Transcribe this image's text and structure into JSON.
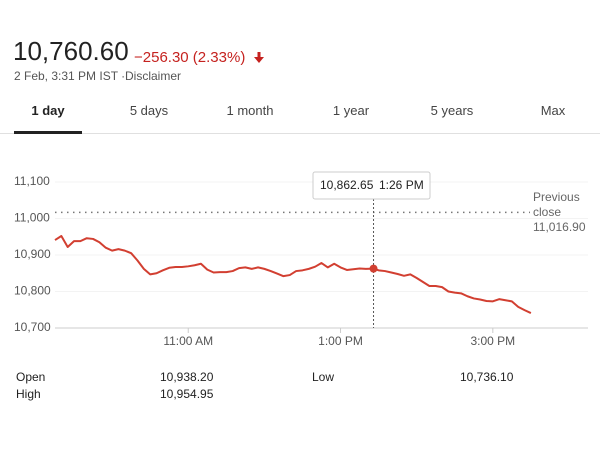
{
  "header": {
    "price": "10,760.60",
    "change": "−256.30 (2.33%)",
    "date": "2 Feb, 3:31 PM IST ·",
    "disclaimer": "Disclaimer"
  },
  "tabs": [
    "1 day",
    "5 days",
    "1 month",
    "1 year",
    "5 years",
    "Max"
  ],
  "stats": [
    {
      "label": "Open",
      "value": "10,938.20"
    },
    {
      "label": "High",
      "value": "10,954.95"
    },
    {
      "label": "Low",
      "value": "10,736.10"
    }
  ],
  "chart_data": {
    "type": "line",
    "x": [
      555,
      560,
      565,
      570,
      575,
      580,
      585,
      590,
      595,
      600,
      605,
      610,
      615,
      620,
      625,
      630,
      635,
      640,
      645,
      650,
      655,
      660,
      665,
      670,
      675,
      680,
      685,
      690,
      695,
      700,
      705,
      710,
      715,
      720,
      725,
      730,
      735,
      740,
      745,
      750,
      755,
      760,
      765,
      770,
      775,
      780,
      785,
      790,
      795,
      800,
      806,
      810,
      815,
      820,
      825,
      830,
      835,
      840,
      845,
      850,
      855,
      860,
      865,
      870,
      875,
      880,
      885,
      890,
      895,
      900,
      905,
      910,
      915,
      920,
      925,
      930
    ],
    "series": [
      {
        "name": null,
        "color": "#d23f31",
        "values": [
          10941,
          10952,
          10922,
          10938,
          10938,
          10946,
          10944,
          10935,
          10920,
          10912,
          10916,
          10912,
          10905,
          10885,
          10862,
          10847,
          10850,
          10858,
          10865,
          10867,
          10867,
          10869,
          10872,
          10876,
          10860,
          10852,
          10853,
          10853,
          10856,
          10864,
          10866,
          10862,
          10866,
          10862,
          10856,
          10849,
          10842,
          10845,
          10856,
          10858,
          10862,
          10868,
          10878,
          10866,
          10876,
          10866,
          10859,
          10861,
          10863,
          10862,
          10862.65,
          10858,
          10856,
          10852,
          10848,
          10843,
          10847,
          10837,
          10826,
          10815,
          10815,
          10812,
          10800,
          10797,
          10795,
          10787,
          10781,
          10778,
          10774,
          10773,
          10779,
          10776,
          10773,
          10758,
          10749,
          10741
        ]
      }
    ],
    "xlim": [
      555,
      975
    ],
    "ylim": [
      10700,
      11100
    ],
    "xticks": [
      {
        "value": 660,
        "label": "11:00 AM"
      },
      {
        "value": 780,
        "label": "1:00 PM"
      },
      {
        "value": 900,
        "label": "3:00 PM"
      }
    ],
    "yticks": [
      {
        "value": 10700,
        "label": "10,700"
      },
      {
        "value": 10800,
        "label": "10,800"
      },
      {
        "value": 10900,
        "label": "10,900"
      },
      {
        "value": 11000,
        "label": "11,000"
      },
      {
        "value": 11100,
        "label": "11,100"
      }
    ],
    "reference_line": {
      "label": "Previous close",
      "value": 11016.9,
      "value_label": "11,016.90"
    },
    "tooltip": {
      "index": 50,
      "value_label": "10,862.65",
      "time_label": "1:26 PM"
    }
  }
}
